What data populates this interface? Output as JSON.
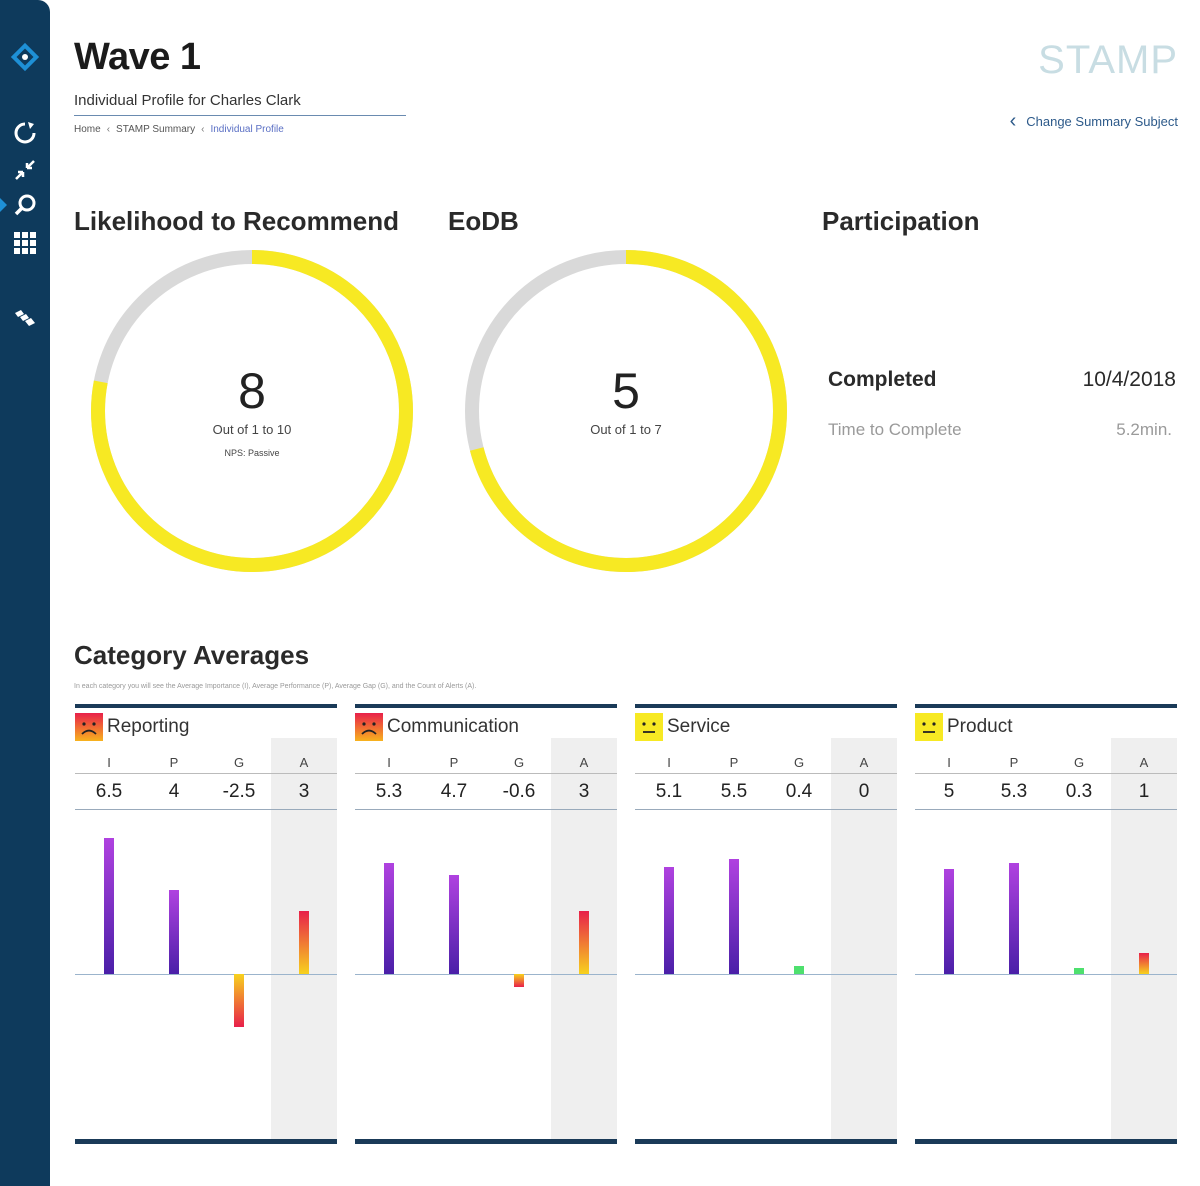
{
  "header": {
    "title": "Wave 1",
    "subtitle": "Individual Profile for Charles Clark",
    "breadcrumb": [
      "Home",
      "STAMP Summary",
      "Individual Profile"
    ],
    "brand": "STAMP",
    "change_subject": "Change Summary Subject"
  },
  "sidebar": {
    "icons": [
      "logo-icon",
      "refresh-icon",
      "collapse-icon",
      "search-icon",
      "grid-icon",
      "layers-icon"
    ],
    "accent_color": "#1e90d6",
    "background_color": "#0e3a5c"
  },
  "ltr": {
    "heading": "Likelihood to Recommend",
    "value": "8",
    "range": "Out of 1 to 10",
    "nps": "NPS: Passive",
    "fill_fraction": 0.78
  },
  "eodb": {
    "heading": "EoDB",
    "value": "5",
    "range": "Out of 1 to 7",
    "fill_fraction": 0.71
  },
  "participation": {
    "heading": "Participation",
    "completed_label": "Completed",
    "completed_date": "10/4/2018",
    "time_label": "Time to Complete",
    "time_value": "5.2min."
  },
  "category_averages": {
    "heading": "Category Averages",
    "note": "In each category you will see the Average Importance (I), Average Performance (P), Average Gap (G), and the Count of Alerts (A).",
    "columns": [
      "I",
      "P",
      "G",
      "A"
    ],
    "cards": [
      {
        "title": "Reporting",
        "face": "frown",
        "values": [
          "6.5",
          "4",
          "-2.5",
          "3"
        ]
      },
      {
        "title": "Communication",
        "face": "frown",
        "values": [
          "5.3",
          "4.7",
          "-0.6",
          "3"
        ]
      },
      {
        "title": "Service",
        "face": "neutral",
        "values": [
          "5.1",
          "5.5",
          "0.4",
          "0"
        ]
      },
      {
        "title": "Product",
        "face": "neutral",
        "values": [
          "5",
          "5.3",
          "0.3",
          "1"
        ]
      }
    ]
  },
  "colors": {
    "gauge_fill": "#f7e923",
    "gauge_track": "#d9d9d9",
    "bar_purple_top": "#b042e0",
    "bar_purple_bottom": "#4a1fa8",
    "bar_alert_top": "#e8204a",
    "bar_alert_bottom": "#f7d21e",
    "bar_green": "#4ee06e"
  }
}
